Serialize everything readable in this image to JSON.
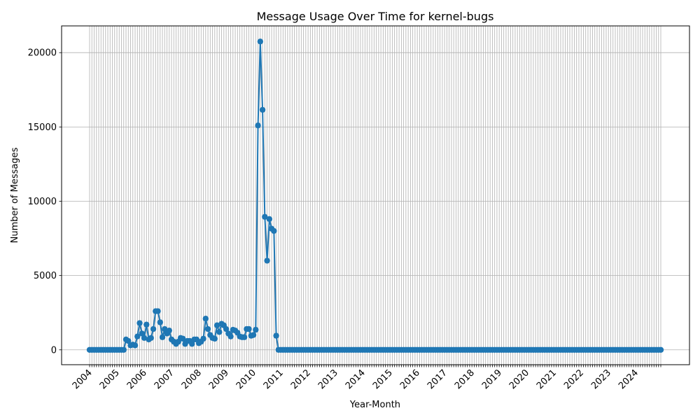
{
  "chart_data": {
    "type": "line",
    "title": "Message Usage Over Time for kernel-bugs",
    "xlabel": "Year-Month",
    "ylabel": "Number of Messages",
    "ylim": [
      -1000,
      21800
    ],
    "yticks": [
      0,
      5000,
      10000,
      15000,
      20000
    ],
    "year_labels": [
      "2004",
      "2005",
      "2006",
      "2007",
      "2008",
      "2009",
      "2010",
      "2011",
      "2012",
      "2013",
      "2014",
      "2015",
      "2016",
      "2017",
      "2018",
      "2019",
      "2020",
      "2021",
      "2022",
      "2023",
      "2024"
    ],
    "x_start": "2004-01",
    "x_end": "2024-12",
    "grid": true,
    "series": [
      {
        "values": [
          0,
          0,
          0,
          0,
          0,
          0,
          0,
          0,
          0,
          0,
          0,
          0,
          0,
          0,
          0,
          0,
          700,
          600,
          300,
          350,
          300,
          900,
          1800,
          1100,
          800,
          1700,
          700,
          800,
          1400,
          2600,
          2600,
          1850,
          850,
          1400,
          1100,
          1300,
          700,
          550,
          400,
          550,
          800,
          750,
          400,
          600,
          600,
          400,
          700,
          700,
          450,
          550,
          750,
          2100,
          1400,
          1000,
          800,
          750,
          1650,
          1200,
          1750,
          1650,
          1400,
          1100,
          900,
          1350,
          1300,
          1150,
          900,
          850,
          850,
          1400,
          1400,
          950,
          1000,
          1350,
          15100,
          20750,
          16150,
          8950,
          6000,
          8800,
          8150,
          8000,
          950,
          0,
          0,
          0,
          0,
          0,
          0,
          0,
          0,
          0,
          0,
          0,
          0,
          0,
          0,
          0,
          0,
          0,
          0,
          0,
          0,
          0,
          0,
          0,
          0,
          0,
          0,
          0,
          0,
          0,
          0,
          0,
          0,
          0,
          0,
          0,
          0,
          0,
          0,
          0,
          0,
          0,
          0,
          0,
          0,
          0,
          0,
          0,
          0,
          0,
          0,
          0,
          0,
          0,
          0,
          0,
          0,
          0,
          0,
          0,
          0,
          0,
          0,
          0,
          0,
          0,
          0,
          0,
          0,
          0,
          0,
          0,
          0,
          0,
          0,
          0,
          0,
          0,
          0,
          0,
          0,
          0,
          0,
          0,
          0,
          0,
          0,
          0,
          0,
          0,
          0,
          0,
          0,
          0,
          0,
          0,
          0,
          0,
          0,
          0,
          0,
          0,
          0,
          0,
          0,
          0,
          0,
          0,
          0,
          0,
          0,
          0,
          0,
          0,
          0,
          0,
          0,
          0,
          0,
          0,
          0,
          0,
          0,
          0,
          0,
          0,
          0,
          0,
          0,
          0,
          0,
          0,
          0,
          0,
          0,
          0,
          0,
          0,
          0,
          0,
          0,
          0,
          0,
          0,
          0,
          0,
          0,
          0,
          0,
          0,
          0,
          0,
          0,
          0,
          0,
          0,
          0,
          0,
          0,
          0,
          0,
          0,
          0,
          0,
          0,
          0,
          0,
          0,
          0,
          0
        ]
      }
    ],
    "colors": {
      "series": "#1f77b4",
      "grid": "#b0b0b0"
    }
  }
}
